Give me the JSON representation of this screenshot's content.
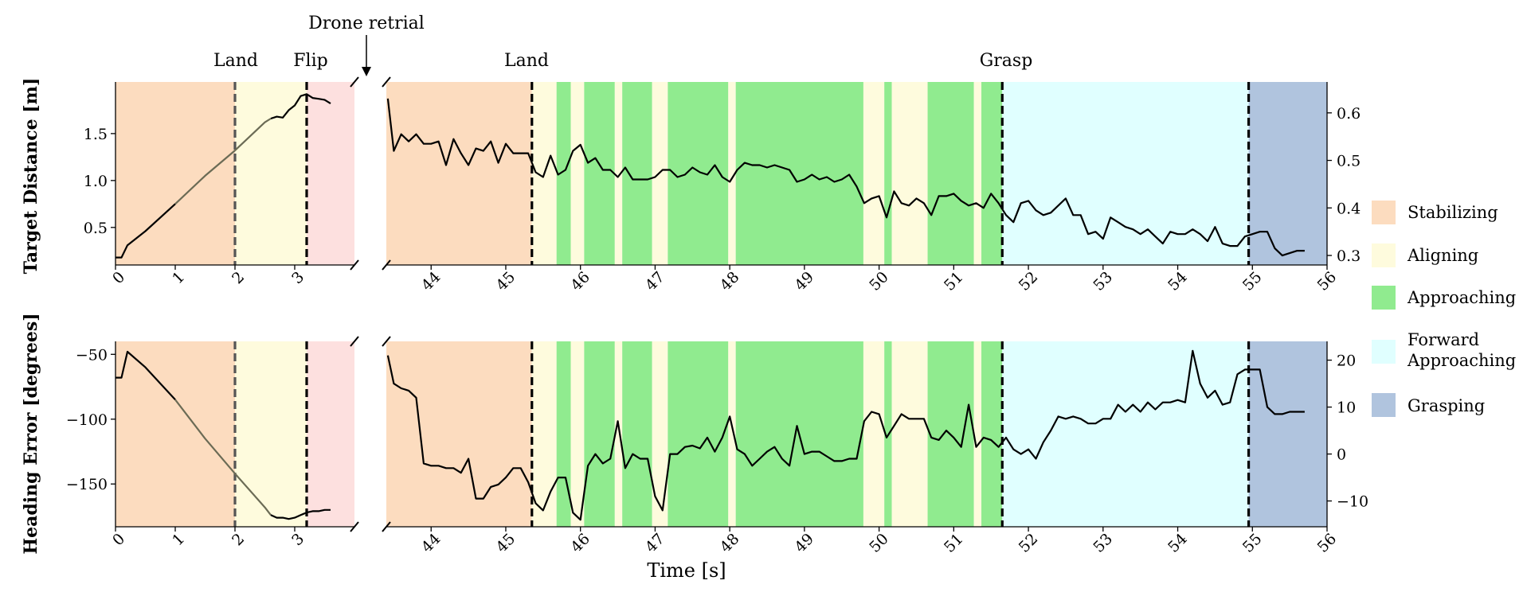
{
  "chart_data": {
    "type": "line",
    "colors": {
      "Stabilizing": "#fcdcbf",
      "Aligning": "#fefbdd",
      "Approaching": "#90eb8f",
      "Forward Approaching": "#e0ffff",
      "Grasping": "#b0c4de",
      "Drone retrial": "#fde0df",
      "line": "#000000"
    },
    "xlabel": "Time [s]",
    "annotations": {
      "drone_retrial": "Drone retrial",
      "land_left": "Land",
      "flip": "Flip",
      "land_right": "Land",
      "grasp": "Grasp"
    },
    "event_times": {
      "land_left": 2.0,
      "flip": 3.2,
      "land_right": 45.35,
      "grasp": 51.65,
      "grasping_start": 54.95
    },
    "legend": [
      "Stabilizing",
      "Aligning",
      "Approaching",
      "Forward Approaching",
      "Grasping"
    ],
    "left_segment": {
      "xlim": [
        0,
        4
      ],
      "xticks": [
        0,
        1,
        2,
        3
      ],
      "phases": [
        {
          "phase": "Stabilizing",
          "x0": 0,
          "x1": 2.0
        },
        {
          "phase": "Aligning",
          "x0": 2.0,
          "x1": 3.2
        },
        {
          "phase": "Drone retrial",
          "x0": 3.2,
          "x1": 4.0
        }
      ]
    },
    "right_segment": {
      "xlim": [
        43.4,
        56
      ],
      "xticks": [
        44,
        45,
        46,
        47,
        48,
        49,
        50,
        51,
        52,
        53,
        54,
        55,
        56
      ],
      "phases": [
        {
          "phase": "Stabilizing",
          "x0": 43.4,
          "x1": 45.35
        },
        {
          "phase": "Aligning",
          "x0": 45.35,
          "x1": 45.68
        },
        {
          "phase": "Approaching",
          "x0": 45.68,
          "x1": 45.87
        },
        {
          "phase": "Aligning",
          "x0": 45.87,
          "x1": 46.05
        },
        {
          "phase": "Approaching",
          "x0": 46.05,
          "x1": 46.46
        },
        {
          "phase": "Aligning",
          "x0": 46.46,
          "x1": 46.56
        },
        {
          "phase": "Approaching",
          "x0": 46.56,
          "x1": 46.96
        },
        {
          "phase": "Aligning",
          "x0": 46.96,
          "x1": 47.17
        },
        {
          "phase": "Approaching",
          "x0": 47.17,
          "x1": 47.98
        },
        {
          "phase": "Aligning",
          "x0": 47.98,
          "x1": 48.08
        },
        {
          "phase": "Approaching",
          "x0": 48.08,
          "x1": 49.79
        },
        {
          "phase": "Aligning",
          "x0": 49.79,
          "x1": 50.07
        },
        {
          "phase": "Approaching",
          "x0": 50.07,
          "x1": 50.17
        },
        {
          "phase": "Aligning",
          "x0": 50.17,
          "x1": 50.65
        },
        {
          "phase": "Approaching",
          "x0": 50.65,
          "x1": 51.27
        },
        {
          "phase": "Aligning",
          "x0": 51.27,
          "x1": 51.37
        },
        {
          "phase": "Approaching",
          "x0": 51.37,
          "x1": 51.65
        },
        {
          "phase": "Forward Approaching",
          "x0": 51.65,
          "x1": 54.95
        },
        {
          "phase": "Grasping",
          "x0": 54.95,
          "x1": 56.0
        }
      ]
    },
    "top_panel": {
      "ylabel": "Target Distance [m]",
      "left_ylim": [
        0.1,
        2.05
      ],
      "left_yticks": [
        0.5,
        1.0,
        1.5
      ],
      "right_ylim": [
        0.28,
        0.665
      ],
      "right_yticks": [
        0.3,
        0.4,
        0.5,
        0.6
      ],
      "left_series": [
        [
          0,
          0.18
        ],
        [
          0.1,
          0.18
        ],
        [
          0.2,
          0.31
        ],
        [
          0.5,
          0.46
        ],
        [
          1.0,
          0.75
        ],
        [
          1.5,
          1.05
        ],
        [
          2.0,
          1.32
        ],
        [
          2.5,
          1.62
        ],
        [
          2.6,
          1.66
        ],
        [
          2.7,
          1.68
        ],
        [
          2.8,
          1.67
        ],
        [
          2.9,
          1.75
        ],
        [
          3.0,
          1.8
        ],
        [
          3.1,
          1.9
        ],
        [
          3.2,
          1.92
        ],
        [
          3.3,
          1.88
        ],
        [
          3.4,
          1.87
        ],
        [
          3.5,
          1.86
        ],
        [
          3.6,
          1.82
        ]
      ],
      "right_series": [
        [
          43.42,
          0.63
        ],
        [
          43.5,
          0.52
        ],
        [
          43.6,
          0.555
        ],
        [
          43.7,
          0.54
        ],
        [
          43.8,
          0.555
        ],
        [
          43.9,
          0.535
        ],
        [
          44.0,
          0.535
        ],
        [
          44.1,
          0.54
        ],
        [
          44.2,
          0.49
        ],
        [
          44.3,
          0.545
        ],
        [
          44.4,
          0.515
        ],
        [
          44.5,
          0.49
        ],
        [
          44.6,
          0.525
        ],
        [
          44.7,
          0.52
        ],
        [
          44.8,
          0.54
        ],
        [
          44.9,
          0.495
        ],
        [
          45.0,
          0.535
        ],
        [
          45.1,
          0.515
        ],
        [
          45.2,
          0.515
        ],
        [
          45.3,
          0.515
        ],
        [
          45.4,
          0.475
        ],
        [
          45.5,
          0.465
        ],
        [
          45.6,
          0.51
        ],
        [
          45.7,
          0.47
        ],
        [
          45.8,
          0.48
        ],
        [
          45.9,
          0.52
        ],
        [
          46.0,
          0.533
        ],
        [
          46.1,
          0.495
        ],
        [
          46.2,
          0.505
        ],
        [
          46.3,
          0.48
        ],
        [
          46.4,
          0.48
        ],
        [
          46.5,
          0.465
        ],
        [
          46.6,
          0.485
        ],
        [
          46.7,
          0.46
        ],
        [
          46.8,
          0.46
        ],
        [
          46.9,
          0.46
        ],
        [
          47.0,
          0.465
        ],
        [
          47.1,
          0.48
        ],
        [
          47.2,
          0.48
        ],
        [
          47.3,
          0.465
        ],
        [
          47.4,
          0.47
        ],
        [
          47.5,
          0.485
        ],
        [
          47.6,
          0.475
        ],
        [
          47.7,
          0.47
        ],
        [
          47.8,
          0.49
        ],
        [
          47.9,
          0.465
        ],
        [
          48.0,
          0.455
        ],
        [
          48.1,
          0.48
        ],
        [
          48.2,
          0.495
        ],
        [
          48.3,
          0.49
        ],
        [
          48.4,
          0.49
        ],
        [
          48.5,
          0.485
        ],
        [
          48.6,
          0.49
        ],
        [
          48.7,
          0.485
        ],
        [
          48.8,
          0.48
        ],
        [
          48.9,
          0.455
        ],
        [
          49.0,
          0.46
        ],
        [
          49.1,
          0.47
        ],
        [
          49.2,
          0.46
        ],
        [
          49.3,
          0.465
        ],
        [
          49.4,
          0.455
        ],
        [
          49.5,
          0.46
        ],
        [
          49.6,
          0.47
        ],
        [
          49.7,
          0.445
        ],
        [
          49.8,
          0.41
        ],
        [
          49.9,
          0.42
        ],
        [
          50.0,
          0.425
        ],
        [
          50.1,
          0.38
        ],
        [
          50.2,
          0.435
        ],
        [
          50.3,
          0.41
        ],
        [
          50.4,
          0.405
        ],
        [
          50.5,
          0.42
        ],
        [
          50.6,
          0.41
        ],
        [
          50.7,
          0.385
        ],
        [
          50.8,
          0.425
        ],
        [
          50.9,
          0.425
        ],
        [
          51.0,
          0.43
        ],
        [
          51.1,
          0.415
        ],
        [
          51.2,
          0.405
        ],
        [
          51.3,
          0.41
        ],
        [
          51.4,
          0.4
        ],
        [
          51.5,
          0.43
        ],
        [
          51.6,
          0.41
        ],
        [
          51.7,
          0.385
        ],
        [
          51.8,
          0.37
        ],
        [
          51.9,
          0.41
        ],
        [
          52.0,
          0.415
        ],
        [
          52.1,
          0.395
        ],
        [
          52.2,
          0.385
        ],
        [
          52.3,
          0.39
        ],
        [
          52.4,
          0.405
        ],
        [
          52.5,
          0.42
        ],
        [
          52.6,
          0.385
        ],
        [
          52.7,
          0.385
        ],
        [
          52.8,
          0.345
        ],
        [
          52.9,
          0.35
        ],
        [
          53.0,
          0.335
        ],
        [
          53.1,
          0.38
        ],
        [
          53.2,
          0.37
        ],
        [
          53.3,
          0.36
        ],
        [
          53.4,
          0.355
        ],
        [
          53.5,
          0.345
        ],
        [
          53.6,
          0.355
        ],
        [
          53.7,
          0.34
        ],
        [
          53.8,
          0.325
        ],
        [
          53.9,
          0.35
        ],
        [
          54.0,
          0.345
        ],
        [
          54.1,
          0.345
        ],
        [
          54.2,
          0.355
        ],
        [
          54.3,
          0.345
        ],
        [
          54.4,
          0.33
        ],
        [
          54.5,
          0.36
        ],
        [
          54.6,
          0.325
        ],
        [
          54.7,
          0.32
        ],
        [
          54.8,
          0.32
        ],
        [
          54.9,
          0.34
        ],
        [
          55.0,
          0.345
        ],
        [
          55.1,
          0.35
        ],
        [
          55.2,
          0.35
        ],
        [
          55.3,
          0.315
        ],
        [
          55.4,
          0.3
        ],
        [
          55.5,
          0.305
        ],
        [
          55.6,
          0.31
        ],
        [
          55.7,
          0.31
        ]
      ]
    },
    "bottom_panel": {
      "ylabel": "Heading Error [degrees]",
      "left_ylim": [
        -183,
        -40
      ],
      "left_yticks": [
        -50,
        -100,
        -150
      ],
      "right_ylim": [
        -15.5,
        24
      ],
      "right_yticks": [
        20,
        10,
        0,
        -10
      ],
      "left_series": [
        [
          0,
          -68
        ],
        [
          0.1,
          -68
        ],
        [
          0.2,
          -48
        ],
        [
          0.5,
          -60
        ],
        [
          1.0,
          -85
        ],
        [
          1.5,
          -115
        ],
        [
          2.0,
          -142
        ],
        [
          2.5,
          -168
        ],
        [
          2.6,
          -174
        ],
        [
          2.7,
          -176
        ],
        [
          2.8,
          -176
        ],
        [
          2.9,
          -177
        ],
        [
          3.0,
          -176
        ],
        [
          3.1,
          -174
        ],
        [
          3.2,
          -172
        ],
        [
          3.3,
          -171
        ],
        [
          3.4,
          -171
        ],
        [
          3.5,
          -170
        ],
        [
          3.6,
          -170
        ]
      ],
      "right_series": [
        [
          43.42,
          21
        ],
        [
          43.5,
          15
        ],
        [
          43.6,
          14
        ],
        [
          43.7,
          13.5
        ],
        [
          43.8,
          12
        ],
        [
          43.9,
          -2
        ],
        [
          44.0,
          -2.5
        ],
        [
          44.1,
          -2.5
        ],
        [
          44.2,
          -3
        ],
        [
          44.3,
          -3
        ],
        [
          44.4,
          -4
        ],
        [
          44.5,
          -1
        ],
        [
          44.6,
          -9.5
        ],
        [
          44.7,
          -9.5
        ],
        [
          44.8,
          -7
        ],
        [
          44.9,
          -6.5
        ],
        [
          45.0,
          -5
        ],
        [
          45.1,
          -3
        ],
        [
          45.2,
          -3
        ],
        [
          45.3,
          -6
        ],
        [
          45.4,
          -10.5
        ],
        [
          45.5,
          -12
        ],
        [
          45.6,
          -8
        ],
        [
          45.7,
          -5
        ],
        [
          45.8,
          -5
        ],
        [
          45.9,
          -12.5
        ],
        [
          46.0,
          -14
        ],
        [
          46.1,
          -2.5
        ],
        [
          46.2,
          0
        ],
        [
          46.3,
          -2
        ],
        [
          46.4,
          -1
        ],
        [
          46.5,
          7
        ],
        [
          46.6,
          -3
        ],
        [
          46.7,
          0
        ],
        [
          46.8,
          -1
        ],
        [
          46.9,
          -1
        ],
        [
          47.0,
          -9
        ],
        [
          47.1,
          -12
        ],
        [
          47.2,
          0
        ],
        [
          47.3,
          0
        ],
        [
          47.4,
          1.5
        ],
        [
          47.5,
          1.8
        ],
        [
          47.6,
          1.2
        ],
        [
          47.7,
          3.5
        ],
        [
          47.8,
          0.5
        ],
        [
          47.9,
          3.5
        ],
        [
          48.0,
          8
        ],
        [
          48.1,
          1
        ],
        [
          48.2,
          0
        ],
        [
          48.3,
          -2.5
        ],
        [
          48.4,
          -1
        ],
        [
          48.5,
          0.5
        ],
        [
          48.6,
          1.5
        ],
        [
          48.7,
          -1
        ],
        [
          48.8,
          -2.5
        ],
        [
          48.9,
          6
        ],
        [
          49.0,
          0
        ],
        [
          49.1,
          0.5
        ],
        [
          49.2,
          0.5
        ],
        [
          49.3,
          -0.5
        ],
        [
          49.4,
          -1.5
        ],
        [
          49.5,
          -1.5
        ],
        [
          49.6,
          -1
        ],
        [
          49.7,
          -1
        ],
        [
          49.8,
          7
        ],
        [
          49.9,
          9
        ],
        [
          50.0,
          8.5
        ],
        [
          50.1,
          3.5
        ],
        [
          50.2,
          6
        ],
        [
          50.3,
          8.5
        ],
        [
          50.4,
          7.5
        ],
        [
          50.5,
          7.5
        ],
        [
          50.6,
          7.5
        ],
        [
          50.7,
          3.5
        ],
        [
          50.8,
          3
        ],
        [
          50.9,
          5
        ],
        [
          51.0,
          3.5
        ],
        [
          51.1,
          1.5
        ],
        [
          51.2,
          10.5
        ],
        [
          51.3,
          1.5
        ],
        [
          51.4,
          3.5
        ],
        [
          51.5,
          3
        ],
        [
          51.6,
          1.5
        ],
        [
          51.7,
          3.5
        ],
        [
          51.8,
          1
        ],
        [
          51.9,
          0
        ],
        [
          52.0,
          1
        ],
        [
          52.1,
          -1
        ],
        [
          52.2,
          2.5
        ],
        [
          52.3,
          5
        ],
        [
          52.4,
          8
        ],
        [
          52.5,
          7.5
        ],
        [
          52.6,
          8
        ],
        [
          52.7,
          7.5
        ],
        [
          52.8,
          6.5
        ],
        [
          52.9,
          6.5
        ],
        [
          53.0,
          7.5
        ],
        [
          53.1,
          7.5
        ],
        [
          53.2,
          10.5
        ],
        [
          53.3,
          9
        ],
        [
          53.4,
          10.5
        ],
        [
          53.5,
          9
        ],
        [
          53.6,
          11
        ],
        [
          53.7,
          9.5
        ],
        [
          53.8,
          11
        ],
        [
          53.9,
          11
        ],
        [
          54.0,
          11.5
        ],
        [
          54.1,
          11
        ],
        [
          54.2,
          22
        ],
        [
          54.3,
          15
        ],
        [
          54.4,
          12
        ],
        [
          54.5,
          13.5
        ],
        [
          54.6,
          10.5
        ],
        [
          54.7,
          11
        ],
        [
          54.8,
          17
        ],
        [
          54.9,
          18
        ],
        [
          55.0,
          18
        ],
        [
          55.1,
          18
        ],
        [
          55.2,
          10
        ],
        [
          55.3,
          8.5
        ],
        [
          55.4,
          8.5
        ],
        [
          55.5,
          9
        ],
        [
          55.6,
          9
        ],
        [
          55.7,
          9
        ]
      ]
    }
  }
}
